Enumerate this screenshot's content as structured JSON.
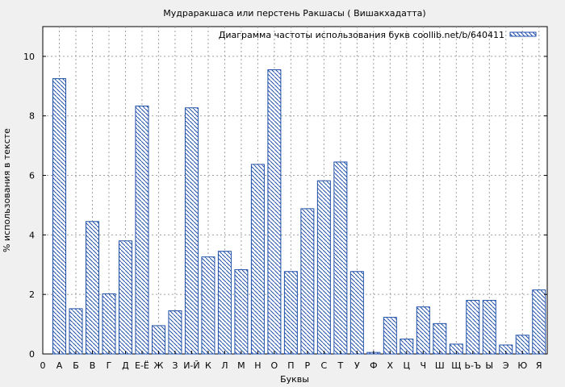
{
  "chart_data": {
    "type": "bar",
    "title": "Мудраракшаса или перстень Ракшасы ( Вишакхадатта)",
    "xlabel": "Буквы",
    "ylabel": "% использования в тексте",
    "legend": {
      "label": "Диаграмма частоты использования букв coollib.net/b/640411",
      "position": "top-right"
    },
    "grid": true,
    "ylim": [
      0,
      11
    ],
    "yticks": [
      0,
      2,
      4,
      6,
      8,
      10
    ],
    "x_origin_label": "0",
    "categories": [
      "А",
      "Б",
      "В",
      "Г",
      "Д",
      "Е-Ё",
      "Ж",
      "З",
      "И-Й",
      "К",
      "Л",
      "М",
      "Н",
      "О",
      "П",
      "Р",
      "С",
      "Т",
      "У",
      "Ф",
      "Х",
      "Ц",
      "Ч",
      "Ш",
      "Щ",
      "Ь-Ъ",
      "Ы",
      "Э",
      "Ю",
      "Я"
    ],
    "values": [
      9.25,
      1.52,
      4.45,
      2.02,
      3.8,
      8.33,
      0.95,
      1.45,
      8.27,
      3.26,
      3.45,
      2.83,
      6.37,
      9.55,
      2.77,
      4.88,
      5.82,
      6.45,
      2.77,
      0.05,
      1.23,
      0.5,
      1.58,
      1.02,
      0.33,
      1.8,
      1.8,
      0.3,
      0.63,
      2.15
    ],
    "colors": {
      "bar_stroke": "#1f4fa8",
      "hatch": "#1f4fa8",
      "plot_bg": "#ffffff",
      "page_bg": "#f0f0f0"
    }
  }
}
